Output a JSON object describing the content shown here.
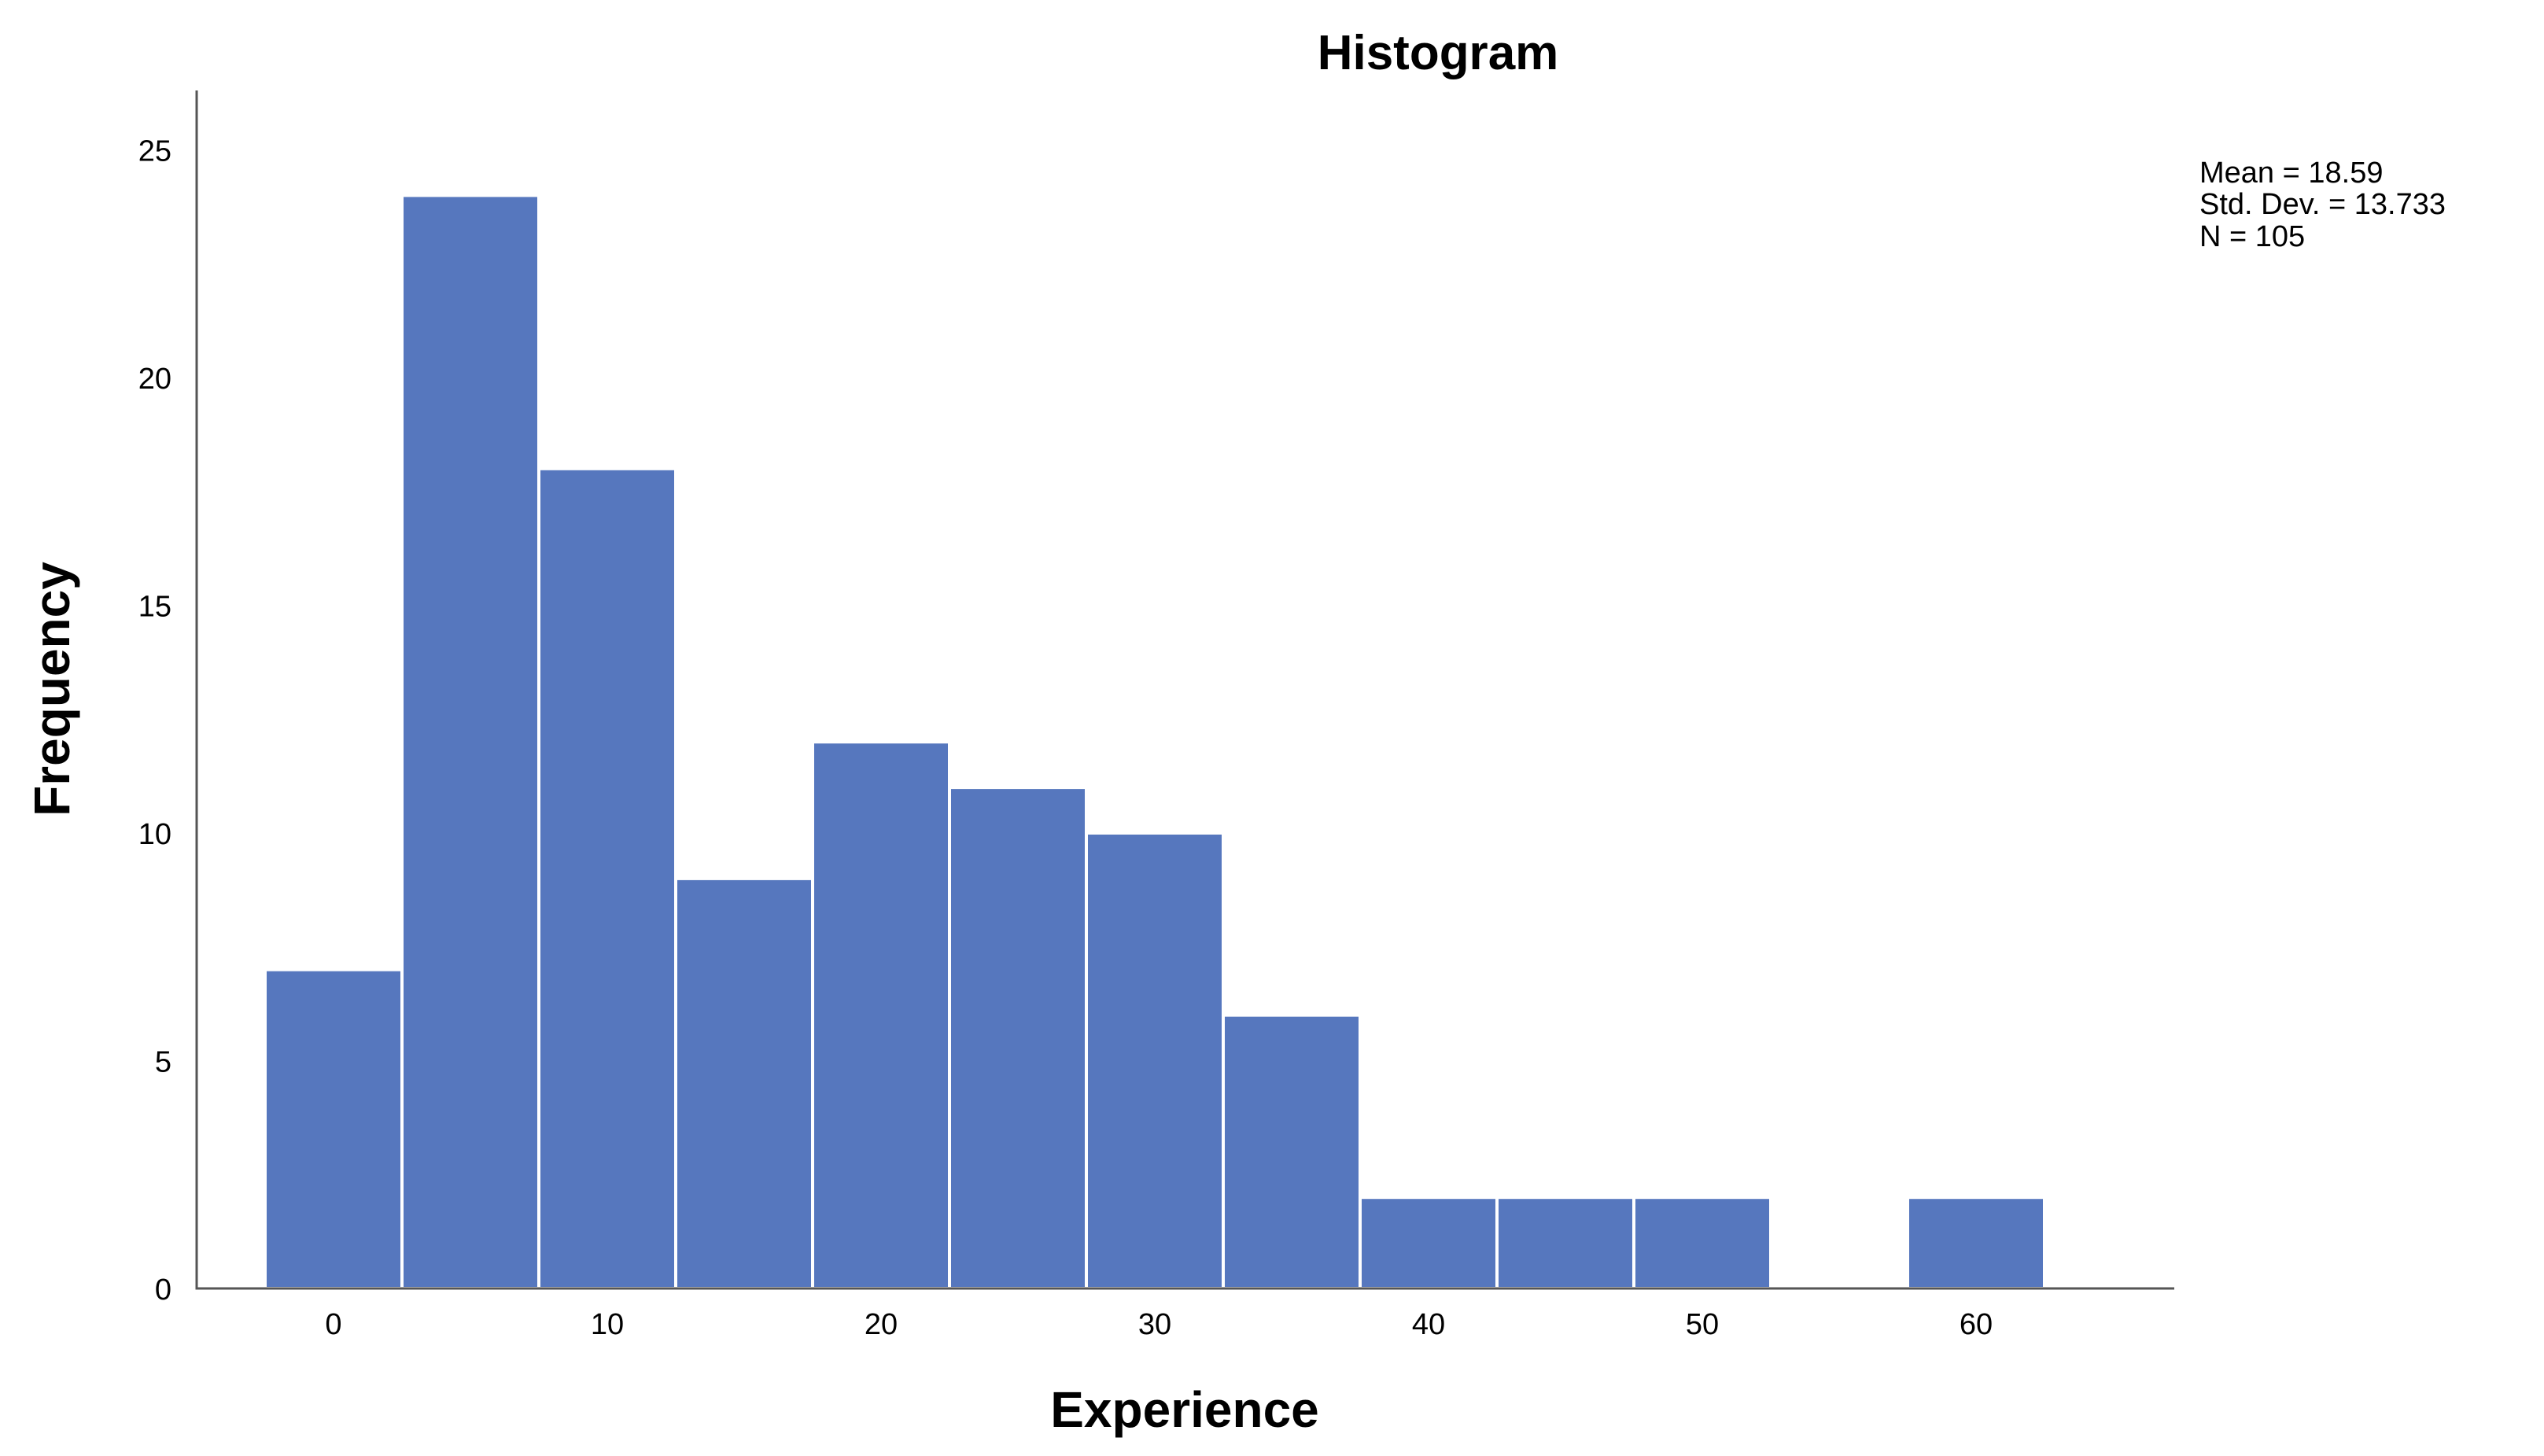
{
  "chart_data": {
    "type": "bar",
    "title": "Histogram",
    "xlabel": "Experience",
    "ylabel": "Frequency",
    "bin_width": 5,
    "bins": [
      {
        "start": -2.5,
        "end": 2.5,
        "count": 7
      },
      {
        "start": 2.5,
        "end": 7.5,
        "count": 24
      },
      {
        "start": 7.5,
        "end": 12.5,
        "count": 18
      },
      {
        "start": 12.5,
        "end": 17.5,
        "count": 9
      },
      {
        "start": 17.5,
        "end": 22.5,
        "count": 12
      },
      {
        "start": 22.5,
        "end": 27.5,
        "count": 11
      },
      {
        "start": 27.5,
        "end": 32.5,
        "count": 10
      },
      {
        "start": 32.5,
        "end": 37.5,
        "count": 6
      },
      {
        "start": 37.5,
        "end": 42.5,
        "count": 2
      },
      {
        "start": 42.5,
        "end": 47.5,
        "count": 2
      },
      {
        "start": 47.5,
        "end": 52.5,
        "count": 2
      },
      {
        "start": 52.5,
        "end": 57.5,
        "count": 0
      },
      {
        "start": 57.5,
        "end": 62.5,
        "count": 2
      }
    ],
    "x_ticks": [
      0,
      10,
      20,
      30,
      40,
      50,
      60
    ],
    "y_ticks": [
      0,
      5,
      10,
      15,
      20,
      25
    ],
    "xlim": [
      -5,
      67
    ],
    "ylim": [
      0,
      26.3
    ],
    "grid": false,
    "bar_color": "#5677BE",
    "stats": {
      "mean": "Mean = 18.59",
      "std": "Std. Dev. = 13.733",
      "n": "N = 105"
    }
  }
}
